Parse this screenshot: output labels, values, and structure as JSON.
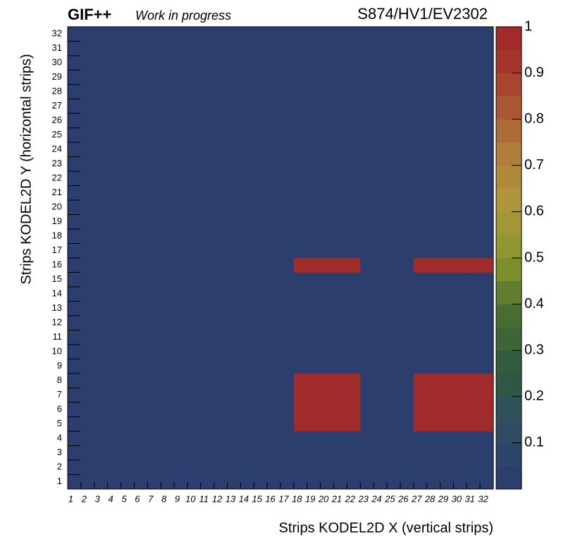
{
  "chart_data": {
    "type": "heatmap",
    "title": "GIF++",
    "subtitle": "Work in progress",
    "run_label": "S874/HV1/EV2302",
    "x_label": "Strips KODEL2D X (vertical strips)",
    "y_label": "Strips KODEL2D Y (horizontal strips)",
    "x": [
      1,
      2,
      3,
      4,
      5,
      6,
      7,
      8,
      9,
      10,
      11,
      12,
      13,
      14,
      15,
      16,
      17,
      18,
      19,
      20,
      21,
      22,
      23,
      24,
      25,
      26,
      27,
      28,
      29,
      30,
      31,
      32
    ],
    "y": [
      1,
      2,
      3,
      4,
      5,
      6,
      7,
      8,
      9,
      10,
      11,
      12,
      13,
      14,
      15,
      16,
      17,
      18,
      19,
      20,
      21,
      22,
      23,
      24,
      25,
      26,
      27,
      28,
      29,
      30,
      31,
      32
    ],
    "values": [
      [
        0,
        0,
        0,
        0,
        0,
        0,
        0,
        0,
        0,
        0,
        0,
        0,
        0,
        0,
        0,
        0,
        0,
        0,
        0,
        0,
        0,
        0,
        0,
        0,
        0,
        0,
        0,
        0,
        0,
        0,
        0,
        0
      ],
      [
        0,
        0,
        0,
        0,
        0,
        0,
        0,
        0,
        0,
        0,
        0,
        0,
        0,
        0,
        0,
        0,
        0,
        0,
        0,
        0,
        0,
        0,
        0,
        0,
        0,
        0,
        0,
        0,
        0,
        0,
        0,
        0
      ],
      [
        0,
        0,
        0,
        0,
        0,
        0,
        0,
        0,
        0,
        0,
        0,
        0,
        0,
        0,
        0,
        0,
        0,
        0,
        0,
        0,
        0,
        0,
        0,
        0,
        0,
        0,
        0,
        0,
        0,
        0,
        0,
        0
      ],
      [
        0,
        0,
        0,
        0,
        0,
        0,
        0,
        0,
        0,
        0,
        0,
        0,
        0,
        0,
        0,
        0,
        0,
        0,
        0,
        0,
        0,
        0,
        0,
        0,
        0,
        0,
        0,
        0,
        0,
        0,
        0,
        0
      ],
      [
        0,
        0,
        0,
        0,
        0,
        0,
        0,
        0,
        0,
        0,
        0,
        0,
        0,
        0,
        0,
        0,
        0,
        1,
        1,
        1,
        1,
        1,
        0,
        0,
        0,
        0,
        1,
        1,
        1,
        1,
        1,
        1
      ],
      [
        0,
        0,
        0,
        0,
        0,
        0,
        0,
        0,
        0,
        0,
        0,
        0,
        0,
        0,
        0,
        0,
        0,
        1,
        1,
        1,
        1,
        1,
        0,
        0,
        0,
        0,
        1,
        1,
        1,
        1,
        1,
        1
      ],
      [
        0,
        0,
        0,
        0,
        0,
        0,
        0,
        0,
        0,
        0,
        0,
        0,
        0,
        0,
        0,
        0,
        0,
        1,
        1,
        1,
        1,
        1,
        0,
        0,
        0,
        0,
        1,
        1,
        1,
        1,
        1,
        1
      ],
      [
        0,
        0,
        0,
        0,
        0,
        0,
        0,
        0,
        0,
        0,
        0,
        0,
        0,
        0,
        0,
        0,
        0,
        1,
        1,
        1,
        1,
        1,
        0,
        0,
        0,
        0,
        1,
        1,
        1,
        1,
        1,
        1
      ],
      [
        0,
        0,
        0,
        0,
        0,
        0,
        0,
        0,
        0,
        0,
        0,
        0,
        0,
        0,
        0,
        0,
        0,
        0,
        0,
        0,
        0,
        0,
        0,
        0,
        0,
        0,
        0,
        0,
        0,
        0,
        0,
        0
      ],
      [
        0,
        0,
        0,
        0,
        0,
        0,
        0,
        0,
        0,
        0,
        0,
        0,
        0,
        0,
        0,
        0,
        0,
        0,
        0,
        0,
        0,
        0,
        0,
        0,
        0,
        0,
        0,
        0,
        0,
        0,
        0,
        0
      ],
      [
        0,
        0,
        0,
        0,
        0,
        0,
        0,
        0,
        0,
        0,
        0,
        0,
        0,
        0,
        0,
        0,
        0,
        0,
        0,
        0,
        0,
        0,
        0,
        0,
        0,
        0,
        0,
        0,
        0,
        0,
        0,
        0
      ],
      [
        0,
        0,
        0,
        0,
        0,
        0,
        0,
        0,
        0,
        0,
        0,
        0,
        0,
        0,
        0,
        0,
        0,
        0,
        0,
        0,
        0,
        0,
        0,
        0,
        0,
        0,
        0,
        0,
        0,
        0,
        0,
        0
      ],
      [
        0,
        0,
        0,
        0,
        0,
        0,
        0,
        0,
        0,
        0,
        0,
        0,
        0,
        0,
        0,
        0,
        0,
        0,
        0,
        0,
        0,
        0,
        0,
        0,
        0,
        0,
        0,
        0,
        0,
        0,
        0,
        0
      ],
      [
        0,
        0,
        0,
        0,
        0,
        0,
        0,
        0,
        0,
        0,
        0,
        0,
        0,
        0,
        0,
        0,
        0,
        0,
        0,
        0,
        0,
        0,
        0,
        0,
        0,
        0,
        0,
        0,
        0,
        0,
        0,
        0
      ],
      [
        0,
        0,
        0,
        0,
        0,
        0,
        0,
        0,
        0,
        0,
        0,
        0,
        0,
        0,
        0,
        0,
        0,
        0,
        0,
        0,
        0,
        0,
        0,
        0,
        0,
        0,
        0,
        0,
        0,
        0,
        0,
        0
      ],
      [
        0,
        0,
        0,
        0,
        0,
        0,
        0,
        0,
        0,
        0,
        0,
        0,
        0,
        0,
        0,
        0,
        0,
        1,
        1,
        1,
        1,
        1,
        0,
        0,
        0,
        0,
        1,
        1,
        1,
        1,
        1,
        1
      ],
      [
        0,
        0,
        0,
        0,
        0,
        0,
        0,
        0,
        0,
        0,
        0,
        0,
        0,
        0,
        0,
        0,
        0,
        0,
        0,
        0,
        0,
        0,
        0,
        0,
        0,
        0,
        0,
        0,
        0,
        0,
        0,
        0
      ],
      [
        0,
        0,
        0,
        0,
        0,
        0,
        0,
        0,
        0,
        0,
        0,
        0,
        0,
        0,
        0,
        0,
        0,
        0,
        0,
        0,
        0,
        0,
        0,
        0,
        0,
        0,
        0,
        0,
        0,
        0,
        0,
        0
      ],
      [
        0,
        0,
        0,
        0,
        0,
        0,
        0,
        0,
        0,
        0,
        0,
        0,
        0,
        0,
        0,
        0,
        0,
        0,
        0,
        0,
        0,
        0,
        0,
        0,
        0,
        0,
        0,
        0,
        0,
        0,
        0,
        0
      ],
      [
        0,
        0,
        0,
        0,
        0,
        0,
        0,
        0,
        0,
        0,
        0,
        0,
        0,
        0,
        0,
        0,
        0,
        0,
        0,
        0,
        0,
        0,
        0,
        0,
        0,
        0,
        0,
        0,
        0,
        0,
        0,
        0
      ],
      [
        0,
        0,
        0,
        0,
        0,
        0,
        0,
        0,
        0,
        0,
        0,
        0,
        0,
        0,
        0,
        0,
        0,
        0,
        0,
        0,
        0,
        0,
        0,
        0,
        0,
        0,
        0,
        0,
        0,
        0,
        0,
        0
      ],
      [
        0,
        0,
        0,
        0,
        0,
        0,
        0,
        0,
        0,
        0,
        0,
        0,
        0,
        0,
        0,
        0,
        0,
        0,
        0,
        0,
        0,
        0,
        0,
        0,
        0,
        0,
        0,
        0,
        0,
        0,
        0,
        0
      ],
      [
        0,
        0,
        0,
        0,
        0,
        0,
        0,
        0,
        0,
        0,
        0,
        0,
        0,
        0,
        0,
        0,
        0,
        0,
        0,
        0,
        0,
        0,
        0,
        0,
        0,
        0,
        0,
        0,
        0,
        0,
        0,
        0
      ],
      [
        0,
        0,
        0,
        0,
        0,
        0,
        0,
        0,
        0,
        0,
        0,
        0,
        0,
        0,
        0,
        0,
        0,
        0,
        0,
        0,
        0,
        0,
        0,
        0,
        0,
        0,
        0,
        0,
        0,
        0,
        0,
        0
      ],
      [
        0,
        0,
        0,
        0,
        0,
        0,
        0,
        0,
        0,
        0,
        0,
        0,
        0,
        0,
        0,
        0,
        0,
        0,
        0,
        0,
        0,
        0,
        0,
        0,
        0,
        0,
        0,
        0,
        0,
        0,
        0,
        0
      ],
      [
        0,
        0,
        0,
        0,
        0,
        0,
        0,
        0,
        0,
        0,
        0,
        0,
        0,
        0,
        0,
        0,
        0,
        0,
        0,
        0,
        0,
        0,
        0,
        0,
        0,
        0,
        0,
        0,
        0,
        0,
        0,
        0
      ],
      [
        0,
        0,
        0,
        0,
        0,
        0,
        0,
        0,
        0,
        0,
        0,
        0,
        0,
        0,
        0,
        0,
        0,
        0,
        0,
        0,
        0,
        0,
        0,
        0,
        0,
        0,
        0,
        0,
        0,
        0,
        0,
        0
      ],
      [
        0,
        0,
        0,
        0,
        0,
        0,
        0,
        0,
        0,
        0,
        0,
        0,
        0,
        0,
        0,
        0,
        0,
        0,
        0,
        0,
        0,
        0,
        0,
        0,
        0,
        0,
        0,
        0,
        0,
        0,
        0,
        0
      ],
      [
        0,
        0,
        0,
        0,
        0,
        0,
        0,
        0,
        0,
        0,
        0,
        0,
        0,
        0,
        0,
        0,
        0,
        0,
        0,
        0,
        0,
        0,
        0,
        0,
        0,
        0,
        0,
        0,
        0,
        0,
        0,
        0
      ],
      [
        0,
        0,
        0,
        0,
        0,
        0,
        0,
        0,
        0,
        0,
        0,
        0,
        0,
        0,
        0,
        0,
        0,
        0,
        0,
        0,
        0,
        0,
        0,
        0,
        0,
        0,
        0,
        0,
        0,
        0,
        0,
        0
      ],
      [
        0,
        0,
        0,
        0,
        0,
        0,
        0,
        0,
        0,
        0,
        0,
        0,
        0,
        0,
        0,
        0,
        0,
        0,
        0,
        0,
        0,
        0,
        0,
        0,
        0,
        0,
        0,
        0,
        0,
        0,
        0,
        0
      ],
      [
        0,
        0,
        0,
        0,
        0,
        0,
        0,
        0,
        0,
        0,
        0,
        0,
        0,
        0,
        0,
        0,
        0,
        0,
        0,
        0,
        0,
        0,
        0,
        0,
        0,
        0,
        0,
        0,
        0,
        0,
        0,
        0
      ]
    ],
    "zlim": [
      0,
      1
    ],
    "zticks": [
      0.1,
      0.2,
      0.3,
      0.4,
      0.5,
      0.6,
      0.7,
      0.8,
      0.9,
      1
    ],
    "levels": 20,
    "palette": [
      "#2c3e6e",
      "#2f4f62",
      "#2f5a3c",
      "#4a6e30",
      "#8a962e",
      "#b0983a",
      "#b07a3a",
      "#a84a30",
      "#a12a2a"
    ]
  }
}
